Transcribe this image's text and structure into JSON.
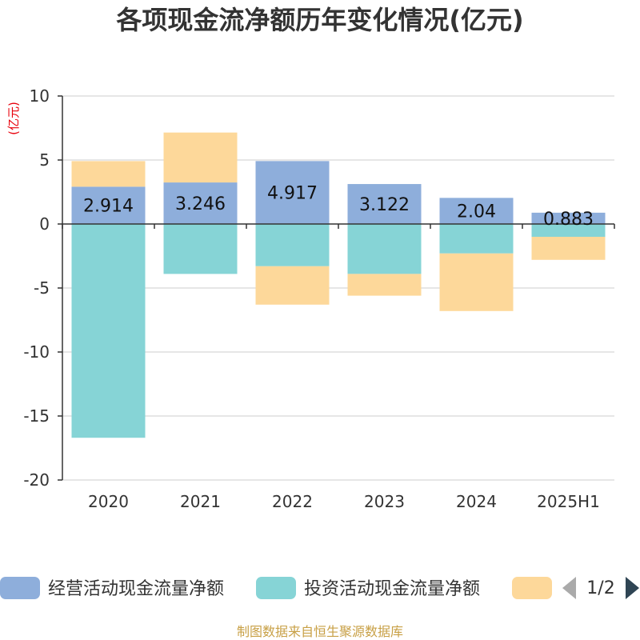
{
  "chart_data": {
    "type": "bar",
    "stacked": true,
    "title": "各项现金流净额历年变化情况(亿元)",
    "ylabel": "(亿元)",
    "categories": [
      "2020",
      "2021",
      "2022",
      "2023",
      "2024",
      "2025H1"
    ],
    "ylim": [
      -20,
      10
    ],
    "yticks": [
      10,
      5,
      0,
      -5,
      -10,
      -15,
      -20
    ],
    "grid": true,
    "series": [
      {
        "name": "经营活动现金流量净额",
        "color": "#8eaedb",
        "values": [
          2.914,
          3.246,
          4.917,
          3.122,
          2.04,
          0.883
        ],
        "labels": [
          "2.914",
          "3.246",
          "4.917",
          "3.122",
          "2.04",
          "0.883"
        ]
      },
      {
        "name": "投资活动现金流量净额",
        "color": "#86d4d6",
        "values": [
          -16.7,
          -3.9,
          -3.3,
          -3.9,
          -2.3,
          -1.0
        ]
      },
      {
        "name": "",
        "color": "#fdd89a",
        "values": [
          2.0,
          3.9,
          -3.0,
          -1.7,
          -4.5,
          -1.8
        ]
      }
    ],
    "legend": {
      "position": "bottom",
      "page": "1/2"
    },
    "source": "制图数据来自恒生聚源数据库"
  }
}
